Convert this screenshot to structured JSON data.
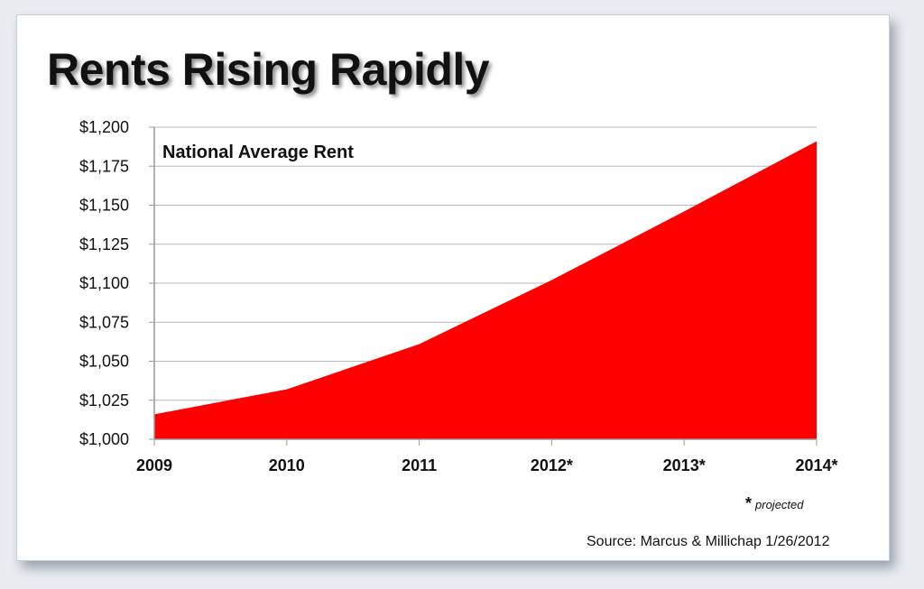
{
  "chart_data": {
    "type": "area",
    "title": "Rents Rising Rapidly",
    "subtitle": "National Average Rent",
    "categories": [
      "2009",
      "2010",
      "2011",
      "2012*",
      "2013*",
      "2014*"
    ],
    "series": [
      {
        "values": [
          1016,
          1032,
          1061,
          1102,
          1146,
          1191
        ]
      }
    ],
    "y_ticks": [
      "$1,000",
      "$1,025",
      "$1,050",
      "$1,075",
      "$1,100",
      "$1,125",
      "$1,150",
      "$1,175",
      "$1,200"
    ],
    "ylim": [
      1000,
      1200
    ],
    "grid": true,
    "fill_color": "#ff0000",
    "footnote_star": "*",
    "footnote_text": "projected",
    "source": "Source: Marcus & Millichap 1/26/2012"
  }
}
